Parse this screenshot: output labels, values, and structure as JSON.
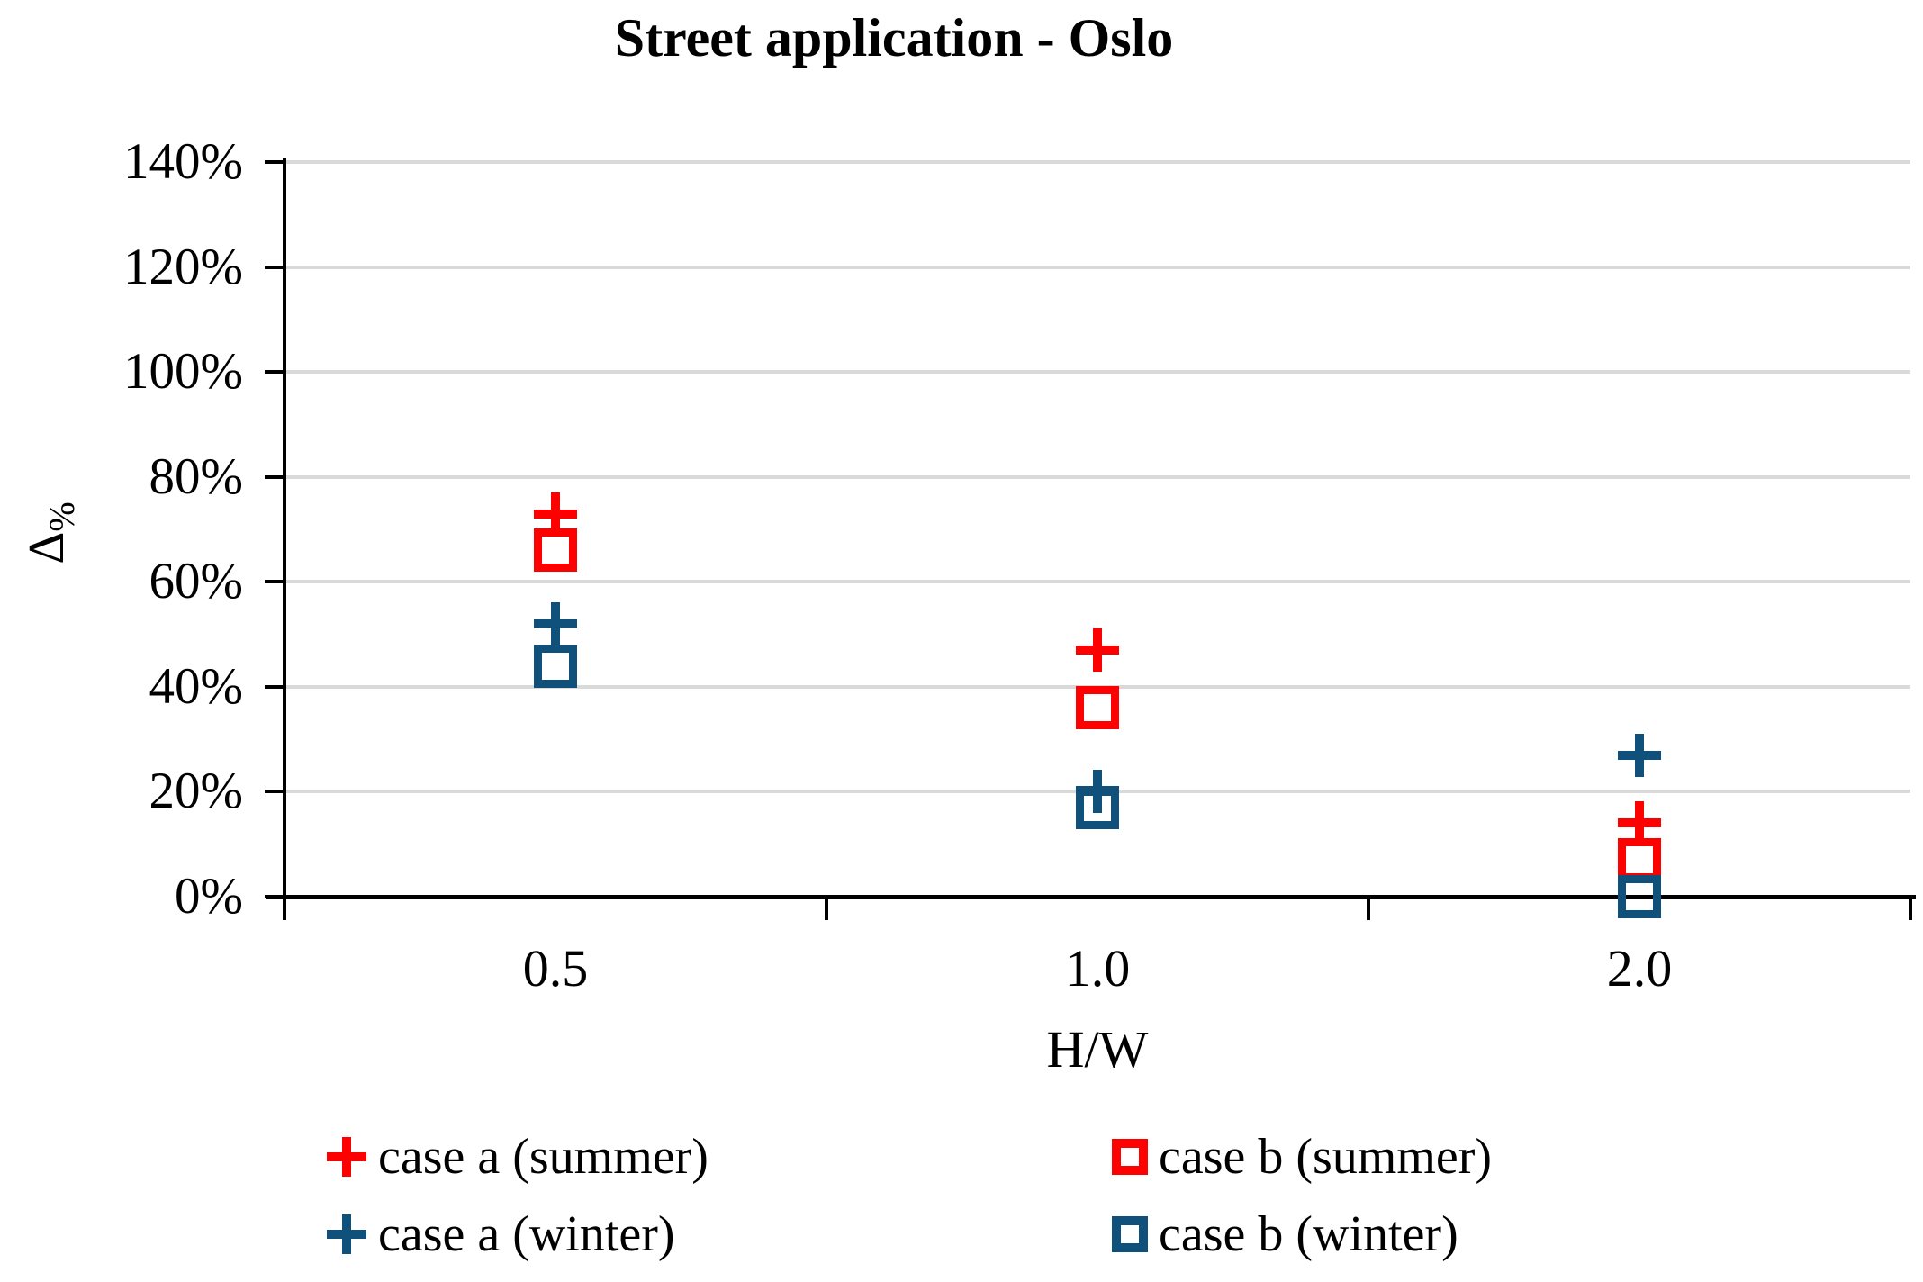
{
  "chart_data": {
    "type": "scatter",
    "title": "Street application - Oslo",
    "xlabel": "H/W",
    "ylabel": "Δ%",
    "ylabel_base": "Δ",
    "ylabel_sub": "%",
    "x_categories": [
      "0.5",
      "1.0",
      "2.0"
    ],
    "x_values": [
      0.5,
      1.0,
      2.0
    ],
    "y_tick_labels": [
      "0%",
      "20%",
      "40%",
      "60%",
      "80%",
      "100%",
      "120%",
      "140%"
    ],
    "ylim": [
      0,
      140
    ],
    "y_major_step": 20,
    "grid": "horizontal-major",
    "legend_position": "bottom",
    "colors": {
      "summer": "#ff0000",
      "winter": "#10517c",
      "gridline": "#d9d9d9",
      "axis": "#000000",
      "text": "#000000",
      "background": "#ffffff"
    },
    "series": [
      {
        "name": "case a (summer)",
        "marker": "plus",
        "color": "#ff0000",
        "values_pct": [
          73,
          47,
          14
        ]
      },
      {
        "name": "case a (winter)",
        "marker": "plus",
        "color": "#10517c",
        "values_pct": [
          52,
          20,
          27
        ]
      },
      {
        "name": "case b (summer)",
        "marker": "square",
        "color": "#ff0000",
        "values_pct": [
          66,
          36,
          7
        ]
      },
      {
        "name": "case b (winter)",
        "marker": "square",
        "color": "#10517c",
        "values_pct": [
          44,
          17,
          0
        ]
      }
    ],
    "legend_grid": [
      [
        "case a (summer)",
        "case b (summer)"
      ],
      [
        "case a (winter)",
        "case b (winter)"
      ]
    ]
  }
}
